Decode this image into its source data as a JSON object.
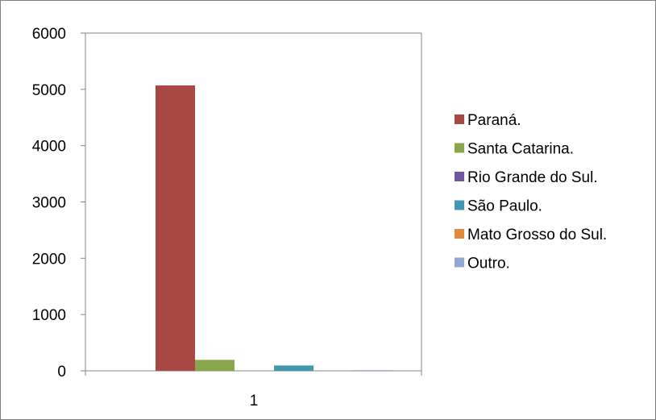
{
  "chart_data": {
    "type": "bar",
    "categories": [
      "1"
    ],
    "series": [
      {
        "name": "Paraná.",
        "values": [
          5070
        ],
        "color": "#a84744"
      },
      {
        "name": "Santa Catarina.",
        "values": [
          195
        ],
        "color": "#8aa64d"
      },
      {
        "name": "Rio Grande do Sul.",
        "values": [
          0
        ],
        "color": "#6f56a0"
      },
      {
        "name": "São Paulo.",
        "values": [
          95
        ],
        "color": "#4298ae"
      },
      {
        "name": "Mato Grosso do Sul.",
        "values": [
          0
        ],
        "color": "#e4883c"
      },
      {
        "name": "Outro.",
        "values": [
          12
        ],
        "color": "#91a8d4"
      }
    ],
    "yticks": [
      "0",
      "1000",
      "2000",
      "3000",
      "4000",
      "5000",
      "6000"
    ],
    "ylim": [
      0,
      6000
    ],
    "grid": false,
    "legend_position": "right"
  }
}
